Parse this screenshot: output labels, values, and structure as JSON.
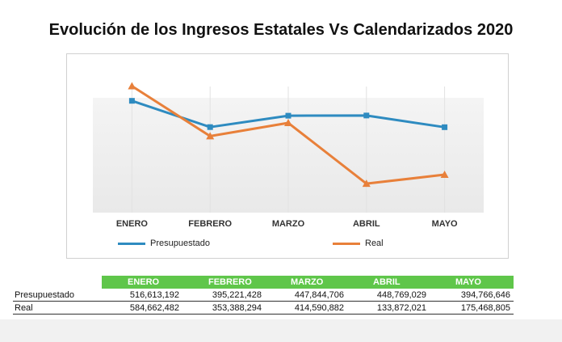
{
  "title": "Evolución de los Ingresos Estatales Vs Calendarizados 2020",
  "chart_data": {
    "type": "line",
    "title": "Evolución de los Ingresos Estatales Vs Calendarizados 2020",
    "categories": [
      "ENERO",
      "FEBRERO",
      "MARZO",
      "ABRIL",
      "MAYO"
    ],
    "series": [
      {
        "name": "Presupuestado",
        "values": [
          516613192,
          395221428,
          447844706,
          448769029,
          394766646
        ],
        "color": "#2e8bc0",
        "marker": "square"
      },
      {
        "name": "Real",
        "values": [
          584662482,
          353388294,
          414590882,
          133872021,
          175468805
        ],
        "color": "#e8803a",
        "marker": "triangle"
      }
    ],
    "ylim": [
      0,
      650000000
    ],
    "grid": false,
    "legend": "bottom"
  },
  "table": {
    "headers": [
      "ENERO",
      "FEBRERO",
      "MARZO",
      "ABRIL",
      "MAYO"
    ],
    "rows": [
      {
        "label": "Presupuestado",
        "values": [
          "516,613,192",
          "395,221,428",
          "447,844,706",
          "448,769,029",
          "394,766,646"
        ]
      },
      {
        "label": "Real",
        "values": [
          "584,662,482",
          "353,388,294",
          "414,590,882",
          "133,872,021",
          "175,468,805"
        ]
      }
    ]
  },
  "colors": {
    "header_green": "#5fc64a",
    "presupuestado": "#2e8bc0",
    "real": "#e8803a"
  }
}
